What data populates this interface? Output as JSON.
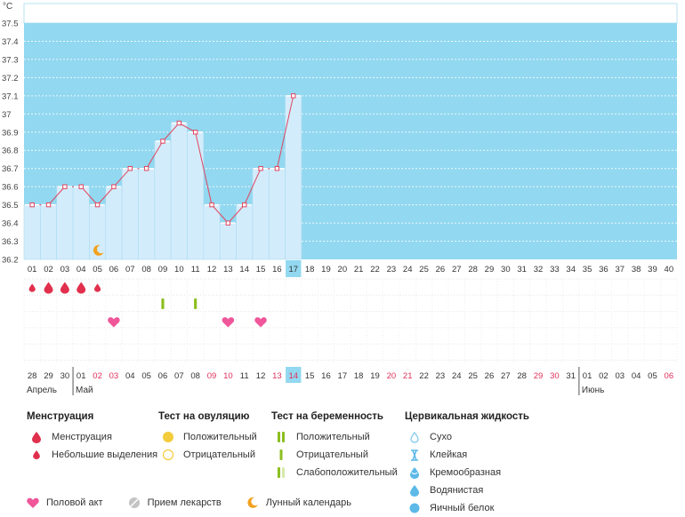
{
  "chart_data": {
    "type": "line",
    "ylabel": "°C",
    "ylim": [
      36.2,
      37.5
    ],
    "y_ticks": [
      "37.5",
      "37.4",
      "37.3",
      "37.2",
      "37.1",
      "37",
      "36.9",
      "36.8",
      "36.7",
      "36.6",
      "36.5",
      "36.4",
      "36.3",
      "36.2"
    ],
    "cycle_days": [
      "01",
      "02",
      "03",
      "04",
      "05",
      "06",
      "07",
      "08",
      "09",
      "10",
      "11",
      "12",
      "13",
      "14",
      "15",
      "16",
      "17",
      "18",
      "19",
      "20",
      "21",
      "22",
      "23",
      "24",
      "25",
      "26",
      "27",
      "28",
      "29",
      "30",
      "31",
      "32",
      "33",
      "34",
      "35",
      "36",
      "37",
      "38",
      "39",
      "40"
    ],
    "temperatures": [
      36.5,
      36.5,
      36.6,
      36.6,
      36.5,
      36.6,
      36.7,
      36.7,
      36.85,
      36.95,
      36.9,
      36.5,
      36.4,
      36.5,
      36.7,
      36.7,
      37.1
    ],
    "highlight_day_index": 16,
    "dates": [
      "28",
      "29",
      "30",
      "01",
      "02",
      "03",
      "04",
      "05",
      "06",
      "07",
      "08",
      "09",
      "10",
      "11",
      "12",
      "13",
      "14",
      "15",
      "16",
      "17",
      "18",
      "19",
      "20",
      "21",
      "22",
      "23",
      "24",
      "25",
      "26",
      "27",
      "28",
      "29",
      "30",
      "31",
      "01",
      "02",
      "03",
      "04",
      "05",
      "06"
    ],
    "red_date_indices": [
      4,
      5,
      11,
      12,
      15,
      16,
      22,
      23,
      31,
      32,
      39
    ],
    "month_labels": [
      {
        "index": 0,
        "label": "Апрель"
      },
      {
        "index": 3,
        "label": "Май"
      },
      {
        "index": 34,
        "label": "Июнь"
      }
    ],
    "menstruation": [
      {
        "day": 0,
        "size": "small"
      },
      {
        "day": 1,
        "size": "large"
      },
      {
        "day": 2,
        "size": "large"
      },
      {
        "day": 3,
        "size": "large"
      },
      {
        "day": 4,
        "size": "small"
      }
    ],
    "pregnancy_tests": [
      {
        "day": 8,
        "result": "negative"
      },
      {
        "day": 10,
        "result": "negative"
      }
    ],
    "intercourse": [
      5,
      12,
      14
    ],
    "lunar_calendar": [
      4
    ],
    "colors": {
      "background": "#92d8f0",
      "bar": "#d3ecfb",
      "line": "#e0445e",
      "highlight": "#92d8f0",
      "red_date": "#e0305a",
      "heart": "#f0569a",
      "test": "#8cbf1f",
      "moon": "#f2a11f"
    }
  },
  "legend": {
    "menstruation": {
      "title": "Менструация",
      "items": [
        "Менструация",
        "Небольшие выделения"
      ]
    },
    "ovulation_test": {
      "title": "Тест на овуляцию",
      "items": [
        "Положительный",
        "Отрицательный"
      ]
    },
    "pregnancy_test": {
      "title": "Тест на беременность",
      "items": [
        "Положительный",
        "Отрицательный",
        "Слабоположительный"
      ]
    },
    "cervical_fluid": {
      "title": "Цервикальная жидкость",
      "items": [
        "Сухо",
        "Клейкая",
        "Кремообразная",
        "Водянистая",
        "Яичный белок"
      ]
    },
    "bottom": {
      "intercourse": "Половой акт",
      "medication": "Прием лекарств",
      "lunar": "Лунный календарь"
    }
  }
}
